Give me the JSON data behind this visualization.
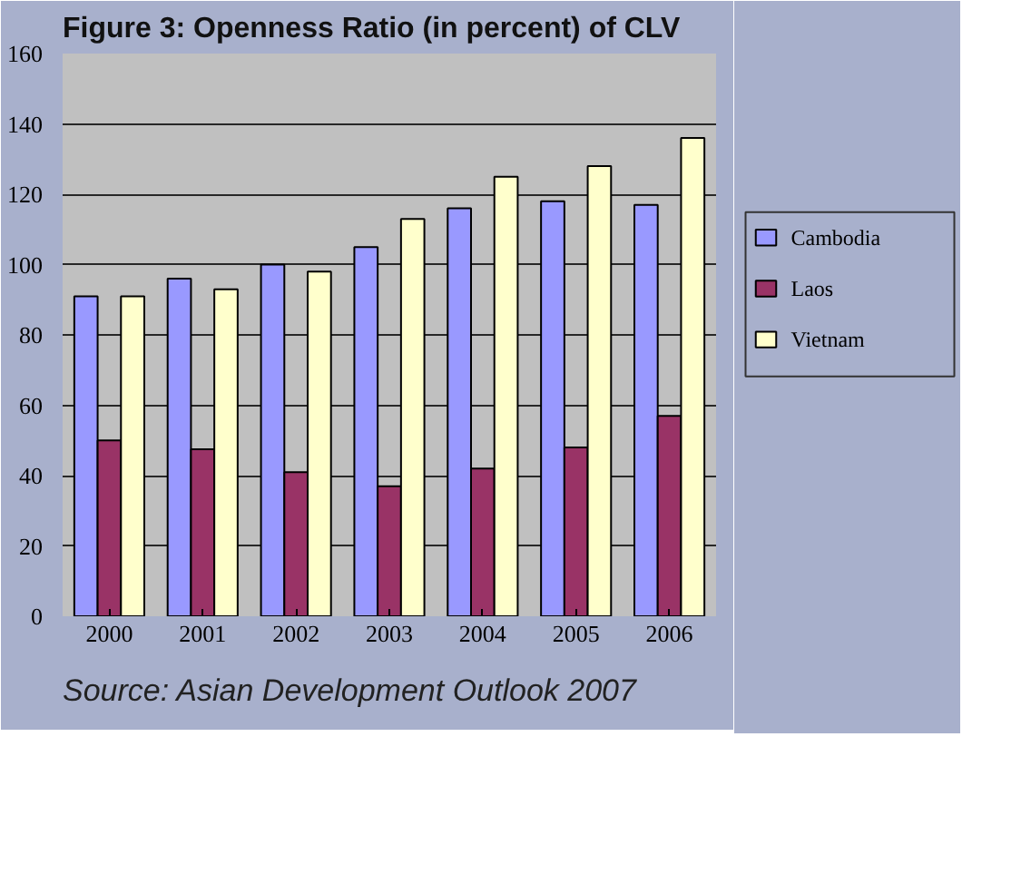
{
  "chart_data": {
    "type": "bar",
    "title": "Figure 3: Openness Ratio (in percent) of CLV",
    "categories": [
      "2000",
      "2001",
      "2002",
      "2003",
      "2004",
      "2005",
      "2006"
    ],
    "series": [
      {
        "name": "Cambodia",
        "color": "#9999ff",
        "values": [
          91,
          96,
          100,
          105,
          116,
          118,
          117
        ]
      },
      {
        "name": "Laos",
        "color": "#993366",
        "values": [
          50,
          47.5,
          41,
          37,
          42,
          48,
          57
        ]
      },
      {
        "name": "Vietnam",
        "color": "#ffffcc",
        "values": [
          91,
          93,
          98,
          113,
          125,
          128,
          136
        ]
      }
    ],
    "ylim": [
      0,
      160
    ],
    "yticks": [
      0,
      20,
      40,
      60,
      80,
      100,
      120,
      140,
      160
    ],
    "grid": "y",
    "legend": "right",
    "annotations": [
      "Source: Asian Development Outlook 2007"
    ]
  }
}
